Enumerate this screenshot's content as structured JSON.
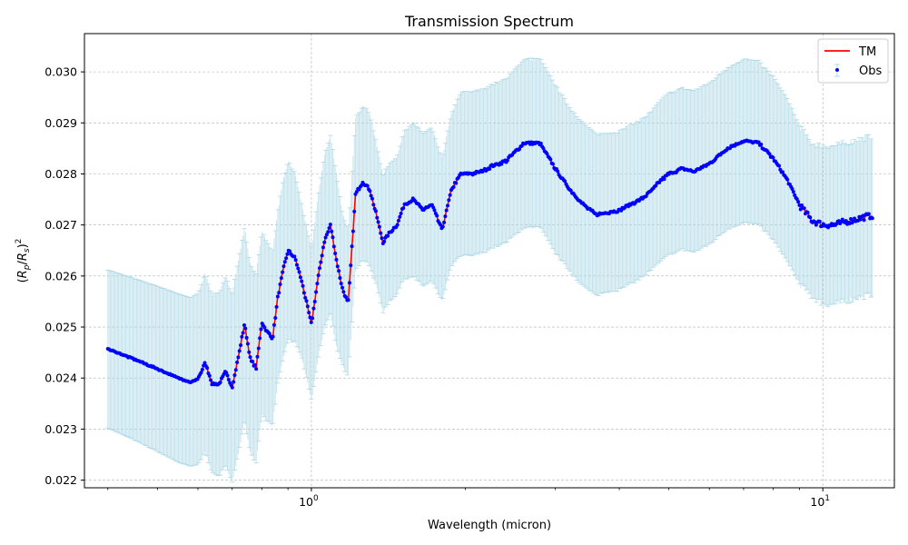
{
  "chart_data": {
    "type": "line",
    "title": "Transmission Spectrum",
    "xlabel": "Wavelength (micron)",
    "ylabel": "(R_p/R_s)^2",
    "x_scale": "log",
    "xlim": [
      0.36,
      13.8
    ],
    "ylim": [
      0.02185,
      0.03075
    ],
    "y_ticks": [
      0.022,
      0.023,
      0.024,
      0.025,
      0.026,
      0.027,
      0.028,
      0.029,
      0.03
    ],
    "y_tick_labels": [
      "0.022",
      "0.023",
      "0.024",
      "0.025",
      "0.026",
      "0.027",
      "0.028",
      "0.029",
      "0.030"
    ],
    "x_major_ticks": [
      1,
      10
    ],
    "x_major_tick_labels": [
      "10^0",
      "10^1"
    ],
    "x_minor_ticks": [
      0.4,
      0.5,
      0.6,
      0.7,
      0.8,
      0.9,
      2,
      3,
      4,
      5,
      6,
      7,
      8,
      9
    ],
    "grid": true,
    "legend_position": "top-right",
    "colors": {
      "model": "#ff0000",
      "observed": "#0000ff",
      "errorbar": "#add8e6",
      "grid": "#b0b0b0"
    },
    "series": [
      {
        "name": "TM",
        "kind": "line",
        "color": "#ff0000"
      },
      {
        "name": "Obs",
        "kind": "scatter-with-errorbars",
        "color": "#0000ff",
        "errorbar_color": "#add8e6"
      }
    ],
    "spectrum_x": [
      0.4,
      0.45,
      0.5,
      0.55,
      0.58,
      0.6,
      0.62,
      0.64,
      0.66,
      0.68,
      0.7,
      0.72,
      0.74,
      0.76,
      0.78,
      0.8,
      0.82,
      0.84,
      0.86,
      0.88,
      0.9,
      0.93,
      0.96,
      1.0,
      1.03,
      1.06,
      1.09,
      1.12,
      1.15,
      1.18,
      1.22,
      1.26,
      1.3,
      1.34,
      1.38,
      1.42,
      1.47,
      1.52,
      1.58,
      1.65,
      1.72,
      1.8,
      1.88,
      1.96,
      2.05,
      2.15,
      2.25,
      2.4,
      2.6,
      2.8,
      3.0,
      3.2,
      3.4,
      3.6,
      3.8,
      4.0,
      4.2,
      4.4,
      4.6,
      4.8,
      5.0,
      5.3,
      5.6,
      6.0,
      6.5,
      7.0,
      7.5,
      8.0,
      8.5,
      9.0,
      9.5,
      10.0,
      10.5,
      11.0,
      11.5,
      12.0,
      12.5
    ],
    "spectrum_y": [
      0.02457,
      0.02437,
      0.02418,
      0.024,
      0.02392,
      0.02398,
      0.0243,
      0.02388,
      0.02388,
      0.02412,
      0.02382,
      0.02442,
      0.02506,
      0.02436,
      0.0242,
      0.0251,
      0.0249,
      0.02478,
      0.0256,
      0.0261,
      0.0265,
      0.02635,
      0.02585,
      0.02505,
      0.02595,
      0.02668,
      0.027,
      0.0263,
      0.02575,
      0.02545,
      0.0276,
      0.02785,
      0.0277,
      0.0272,
      0.02665,
      0.02685,
      0.027,
      0.0274,
      0.0275,
      0.0273,
      0.0274,
      0.0269,
      0.0277,
      0.028,
      0.028,
      0.02805,
      0.02815,
      0.02825,
      0.0286,
      0.0286,
      0.0281,
      0.0277,
      0.0274,
      0.0272,
      0.02725,
      0.02728,
      0.0274,
      0.0275,
      0.02765,
      0.02785,
      0.028,
      0.0281,
      0.02805,
      0.0282,
      0.0285,
      0.02865,
      0.0286,
      0.0283,
      0.0279,
      0.0274,
      0.0271,
      0.027,
      0.027,
      0.02705,
      0.0271,
      0.02715,
      0.02718
    ],
    "spectrum_err": [
      0.00155,
      0.00158,
      0.00162,
      0.00165,
      0.00165,
      0.00168,
      0.00175,
      0.00175,
      0.0018,
      0.00185,
      0.00185,
      0.0019,
      0.0019,
      0.00185,
      0.00185,
      0.0018,
      0.00175,
      0.0017,
      0.0017,
      0.00175,
      0.00175,
      0.00165,
      0.0015,
      0.0015,
      0.0016,
      0.0017,
      0.00175,
      0.0017,
      0.0015,
      0.00145,
      0.0015,
      0.0015,
      0.0015,
      0.0014,
      0.00135,
      0.00135,
      0.00135,
      0.00145,
      0.0015,
      0.0015,
      0.0015,
      0.0014,
      0.0015,
      0.0016,
      0.0016,
      0.0016,
      0.0016,
      0.0016,
      0.00165,
      0.00165,
      0.00165,
      0.0016,
      0.0016,
      0.00158,
      0.00155,
      0.00155,
      0.00155,
      0.00155,
      0.00155,
      0.00158,
      0.00158,
      0.00158,
      0.00158,
      0.00158,
      0.00158,
      0.0016,
      0.0016,
      0.0016,
      0.0016,
      0.00155,
      0.0015,
      0.00155,
      0.00155,
      0.00155,
      0.00155,
      0.00155,
      0.00155
    ]
  }
}
